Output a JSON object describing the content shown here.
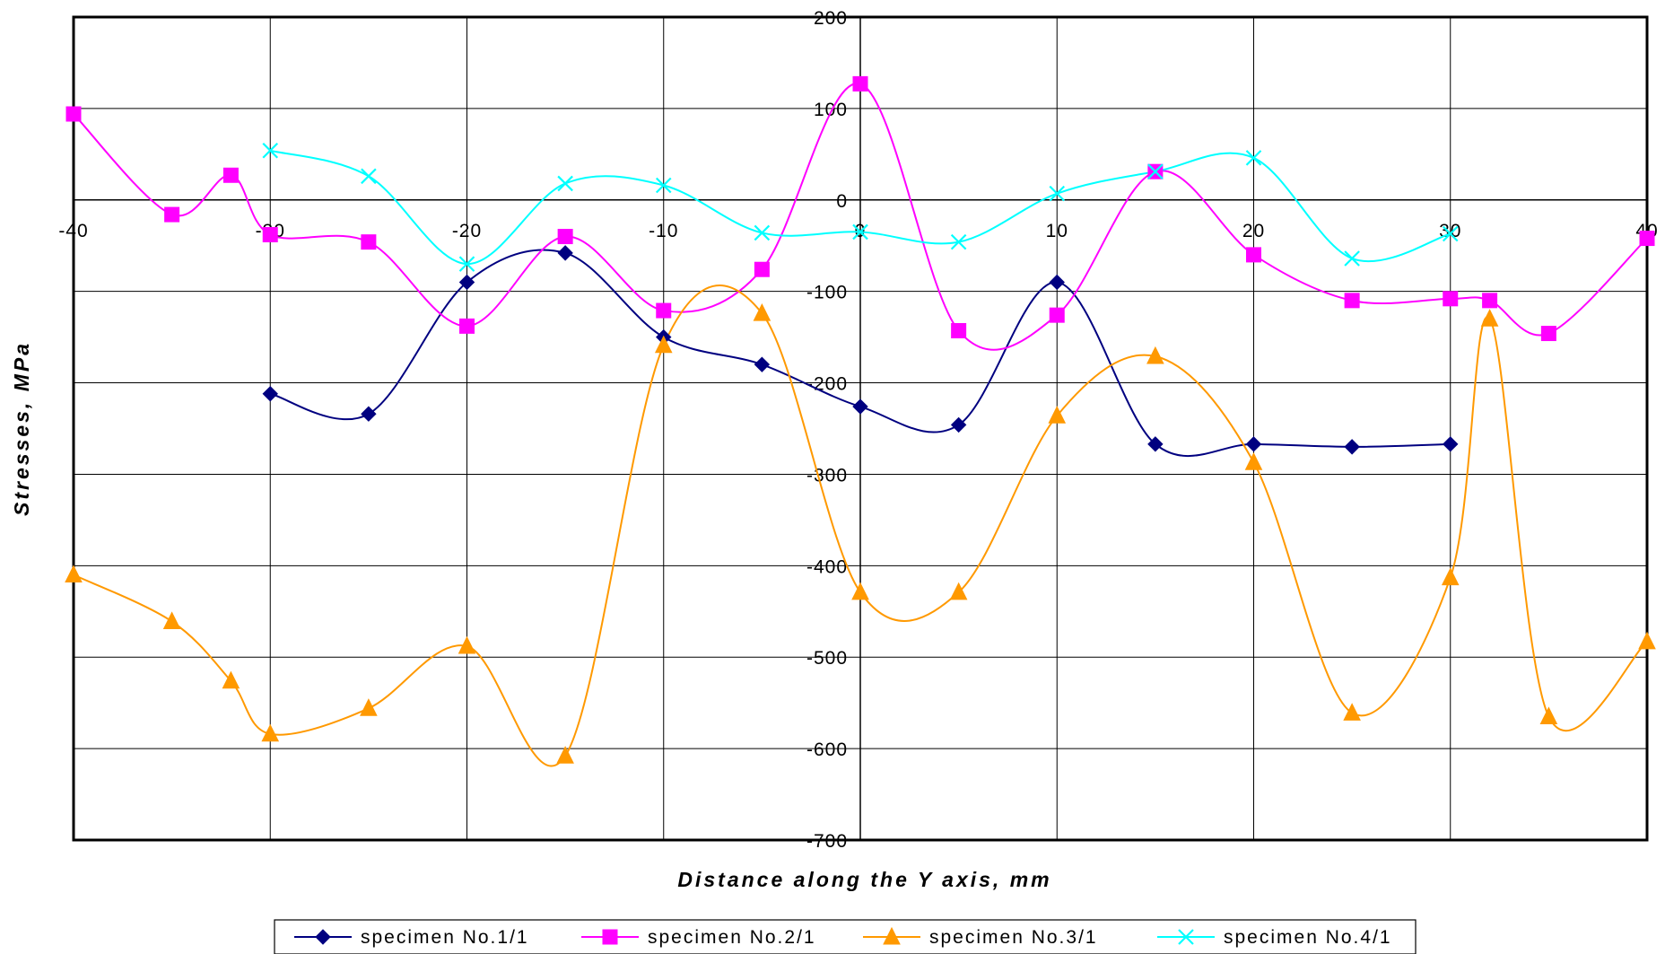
{
  "chart_data": {
    "type": "line",
    "title": "",
    "xlabel": "Distance along the Y axis, mm",
    "ylabel": "Stresses, MPa",
    "xlim": [
      -40,
      40
    ],
    "ylim": [
      -700,
      200
    ],
    "x_ticks": [
      -40,
      -30,
      -20,
      -10,
      0,
      10,
      20,
      30,
      40
    ],
    "y_ticks": [
      200,
      100,
      0,
      -100,
      -200,
      -300,
      -400,
      -500,
      -600,
      -700
    ],
    "x_tick_labels": [
      "-40",
      "-30",
      "-20",
      "-10",
      "0",
      "10",
      "20",
      "30",
      "40"
    ],
    "y_tick_labels": [
      "200",
      "100",
      "0",
      "-100",
      "-200",
      "-300",
      "-400",
      "-500",
      "-600",
      "-700"
    ],
    "grid": true,
    "smooth": true,
    "legend_position": "bottom",
    "series": [
      {
        "name": "specimen No.1/1",
        "color": "#000080",
        "marker": "diamond",
        "x": [
          -30,
          -25,
          -20,
          -15,
          -10,
          -5,
          0,
          5,
          10,
          15,
          20,
          25,
          30
        ],
        "y": [
          -212,
          -234,
          -90,
          -58,
          -150,
          -180,
          -226,
          -246,
          -90,
          -267,
          -267,
          -270,
          -267
        ]
      },
      {
        "name": "specimen No.2/1",
        "color": "#ff00ff",
        "marker": "square",
        "x": [
          -40,
          -35,
          -32,
          -30,
          -25,
          -20,
          -15,
          -10,
          -5,
          0,
          5,
          10,
          15,
          20,
          25,
          30,
          32,
          35,
          40
        ],
        "y": [
          94,
          -16,
          27,
          -38,
          -46,
          -138,
          -40,
          -121,
          -76,
          127,
          -143,
          -126,
          31,
          -60,
          -110,
          -108,
          -110,
          -146,
          -42
        ]
      },
      {
        "name": "specimen No.3/1",
        "color": "#ff9900",
        "marker": "triangle",
        "x": [
          -40,
          -35,
          -32,
          -30,
          -25,
          -20,
          -15,
          -10,
          -5,
          0,
          5,
          10,
          15,
          20,
          25,
          30,
          32,
          35,
          40
        ],
        "y": [
          -410,
          -461,
          -526,
          -584,
          -556,
          -488,
          -608,
          -159,
          -124,
          -429,
          -429,
          -236,
          -171,
          -287,
          -561,
          -413,
          -130,
          -565,
          -483
        ]
      },
      {
        "name": "specimen No.4/1",
        "color": "#00ffff",
        "marker": "x",
        "x": [
          -30,
          -25,
          -20,
          -15,
          -10,
          -5,
          0,
          5,
          10,
          15,
          20,
          25,
          30
        ],
        "y": [
          54,
          26,
          -70,
          18,
          16,
          -36,
          -35,
          -46,
          7,
          31,
          46,
          -64,
          -37
        ]
      }
    ]
  }
}
